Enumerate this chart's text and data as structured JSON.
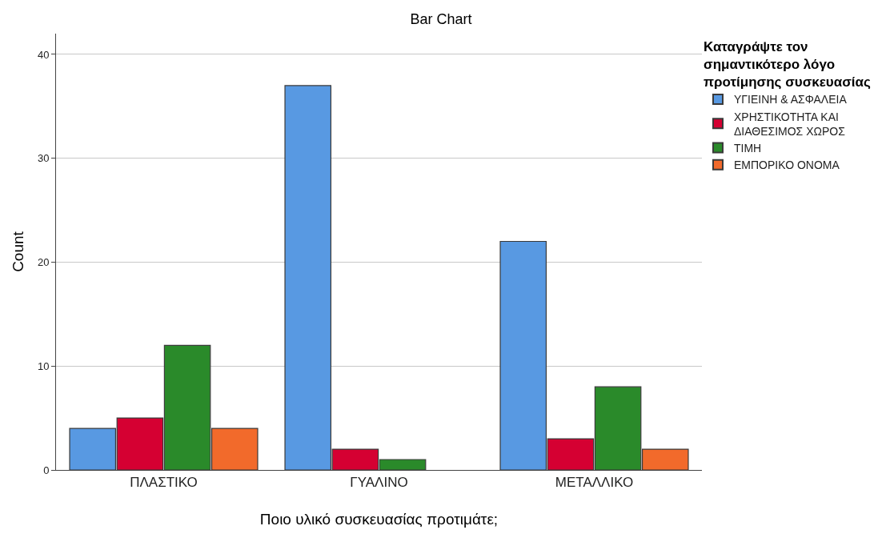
{
  "chart_data": {
    "type": "bar",
    "title": "Bar Chart",
    "xlabel": "Ποιο υλικό συσκευασίας προτιμάτε;",
    "ylabel": "Count",
    "legend_title": "Καταγράψτε τον σημαντικότερο λόγο προτίμησης συσκευασίας",
    "categories": [
      "ΠΛΑΣΤΙΚΟ",
      "ΓΥΑΛΙΝΟ",
      "ΜΕΤΑΛΛΙΚΟ"
    ],
    "series": [
      {
        "name": "ΥΓΙΕΙΝΗ & ΑΣΦΑΛΕΙΑ",
        "color": "#5899e2",
        "values": [
          4,
          37,
          22
        ]
      },
      {
        "name": "ΧΡΗΣΤΙΚΟΤΗΤΑ ΚΑΙ ΔΙΑΘΕΣΙΜΟΣ ΧΩΡΟΣ",
        "color": "#d50032",
        "values": [
          5,
          2,
          3
        ]
      },
      {
        "name": "ΤΙΜΗ",
        "color": "#2a8a2a",
        "values": [
          12,
          1,
          8
        ]
      },
      {
        "name": "ΕΜΠΟΡΙΚΟ ΟΝΟΜΑ",
        "color": "#f26a2b",
        "values": [
          4,
          null,
          2
        ]
      }
    ],
    "ylim": [
      0,
      42
    ],
    "yticks": [
      0,
      10,
      20,
      30,
      40
    ],
    "grid": "y",
    "legend": "top right"
  }
}
